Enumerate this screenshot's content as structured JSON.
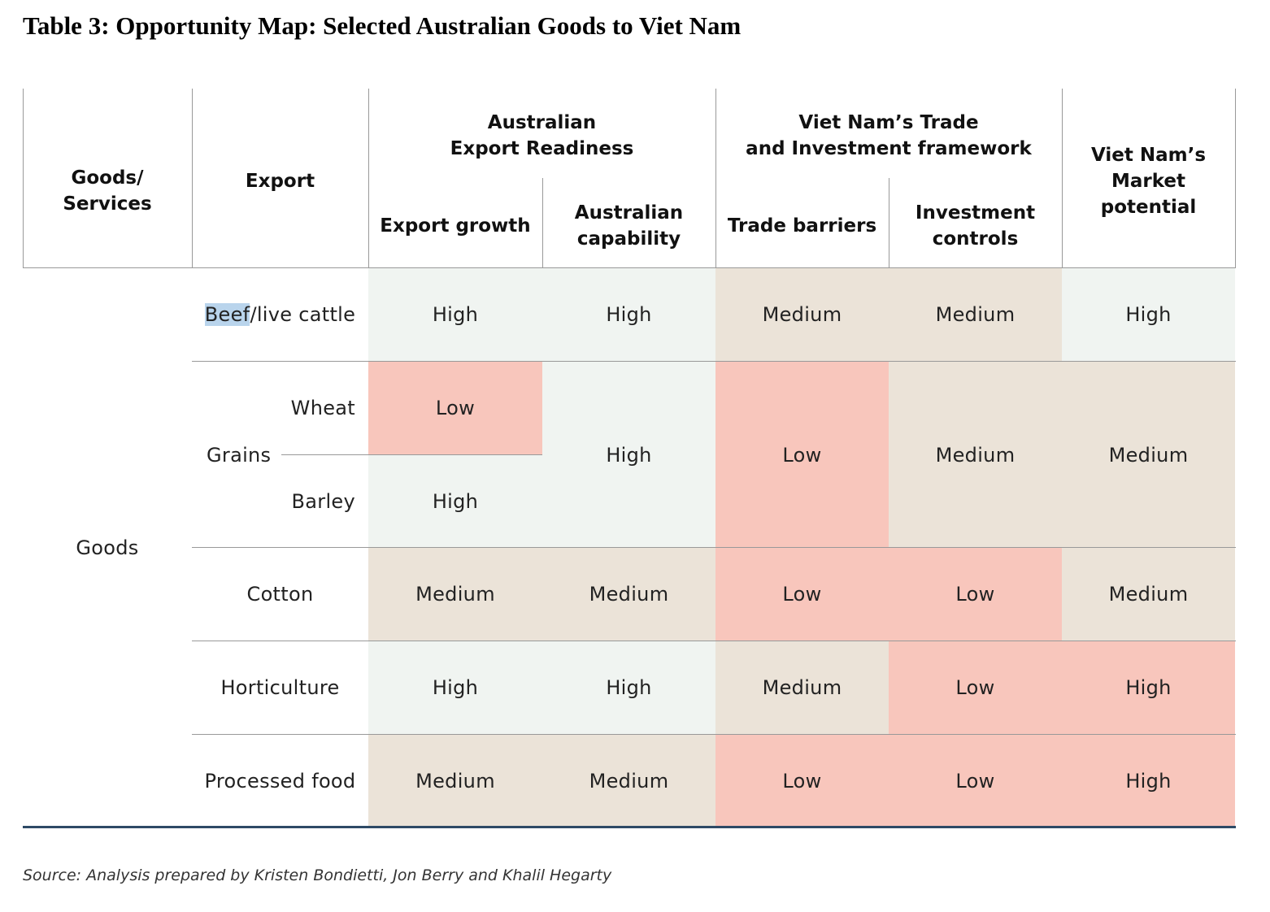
{
  "title": "Table 3: Opportunity Map: Selected Australian Goods to Viet Nam",
  "colors": {
    "high": "#f0f4f1",
    "medium": "#ebe3d8",
    "low": "#f8c6bc",
    "bottom_rule": "#2e4a66"
  },
  "header": {
    "goods_services": "Goods/\nServices",
    "export": "Export",
    "export_readiness": "Australian\nExport Readiness",
    "export_growth": "Export growth",
    "australian_capability": "Australian\ncapability",
    "trade_framework": "Viet Nam’s Trade\nand Investment framework",
    "trade_barriers": "Trade barriers",
    "investment_controls": "Investment\ncontrols",
    "market_potential": "Viet Nam’s\nMarket\npotential"
  },
  "rows": {
    "category": "Goods",
    "beef": {
      "label_highlight": "Beef",
      "label_rest": "/live cattle",
      "export_growth": "High",
      "capability": "High",
      "trade_barriers": "Medium",
      "investment_controls": "Medium",
      "market_potential": "High"
    },
    "grains": {
      "label": "Grains",
      "wheat": {
        "label": "Wheat",
        "export_growth": "Low"
      },
      "barley": {
        "label": "Barley",
        "export_growth": "High"
      },
      "capability": "High",
      "trade_barriers": "Low",
      "investment_controls": "Medium",
      "market_potential": "Medium"
    },
    "cotton": {
      "label": "Cotton",
      "export_growth": "Medium",
      "capability": "Medium",
      "trade_barriers": "Low",
      "investment_controls": "Low",
      "market_potential": "Medium"
    },
    "horticulture": {
      "label": "Horticulture",
      "export_growth": "High",
      "capability": "High",
      "trade_barriers": "Medium",
      "investment_controls": "Low",
      "market_potential": "High"
    },
    "processed_food": {
      "label": "Processed food",
      "export_growth": "Medium",
      "capability": "Medium",
      "trade_barriers": "Low",
      "investment_controls": "Low",
      "market_potential": "High"
    }
  },
  "source": "Source: Analysis prepared by Kristen Bondietti, Jon Berry and Khalil Hegarty"
}
